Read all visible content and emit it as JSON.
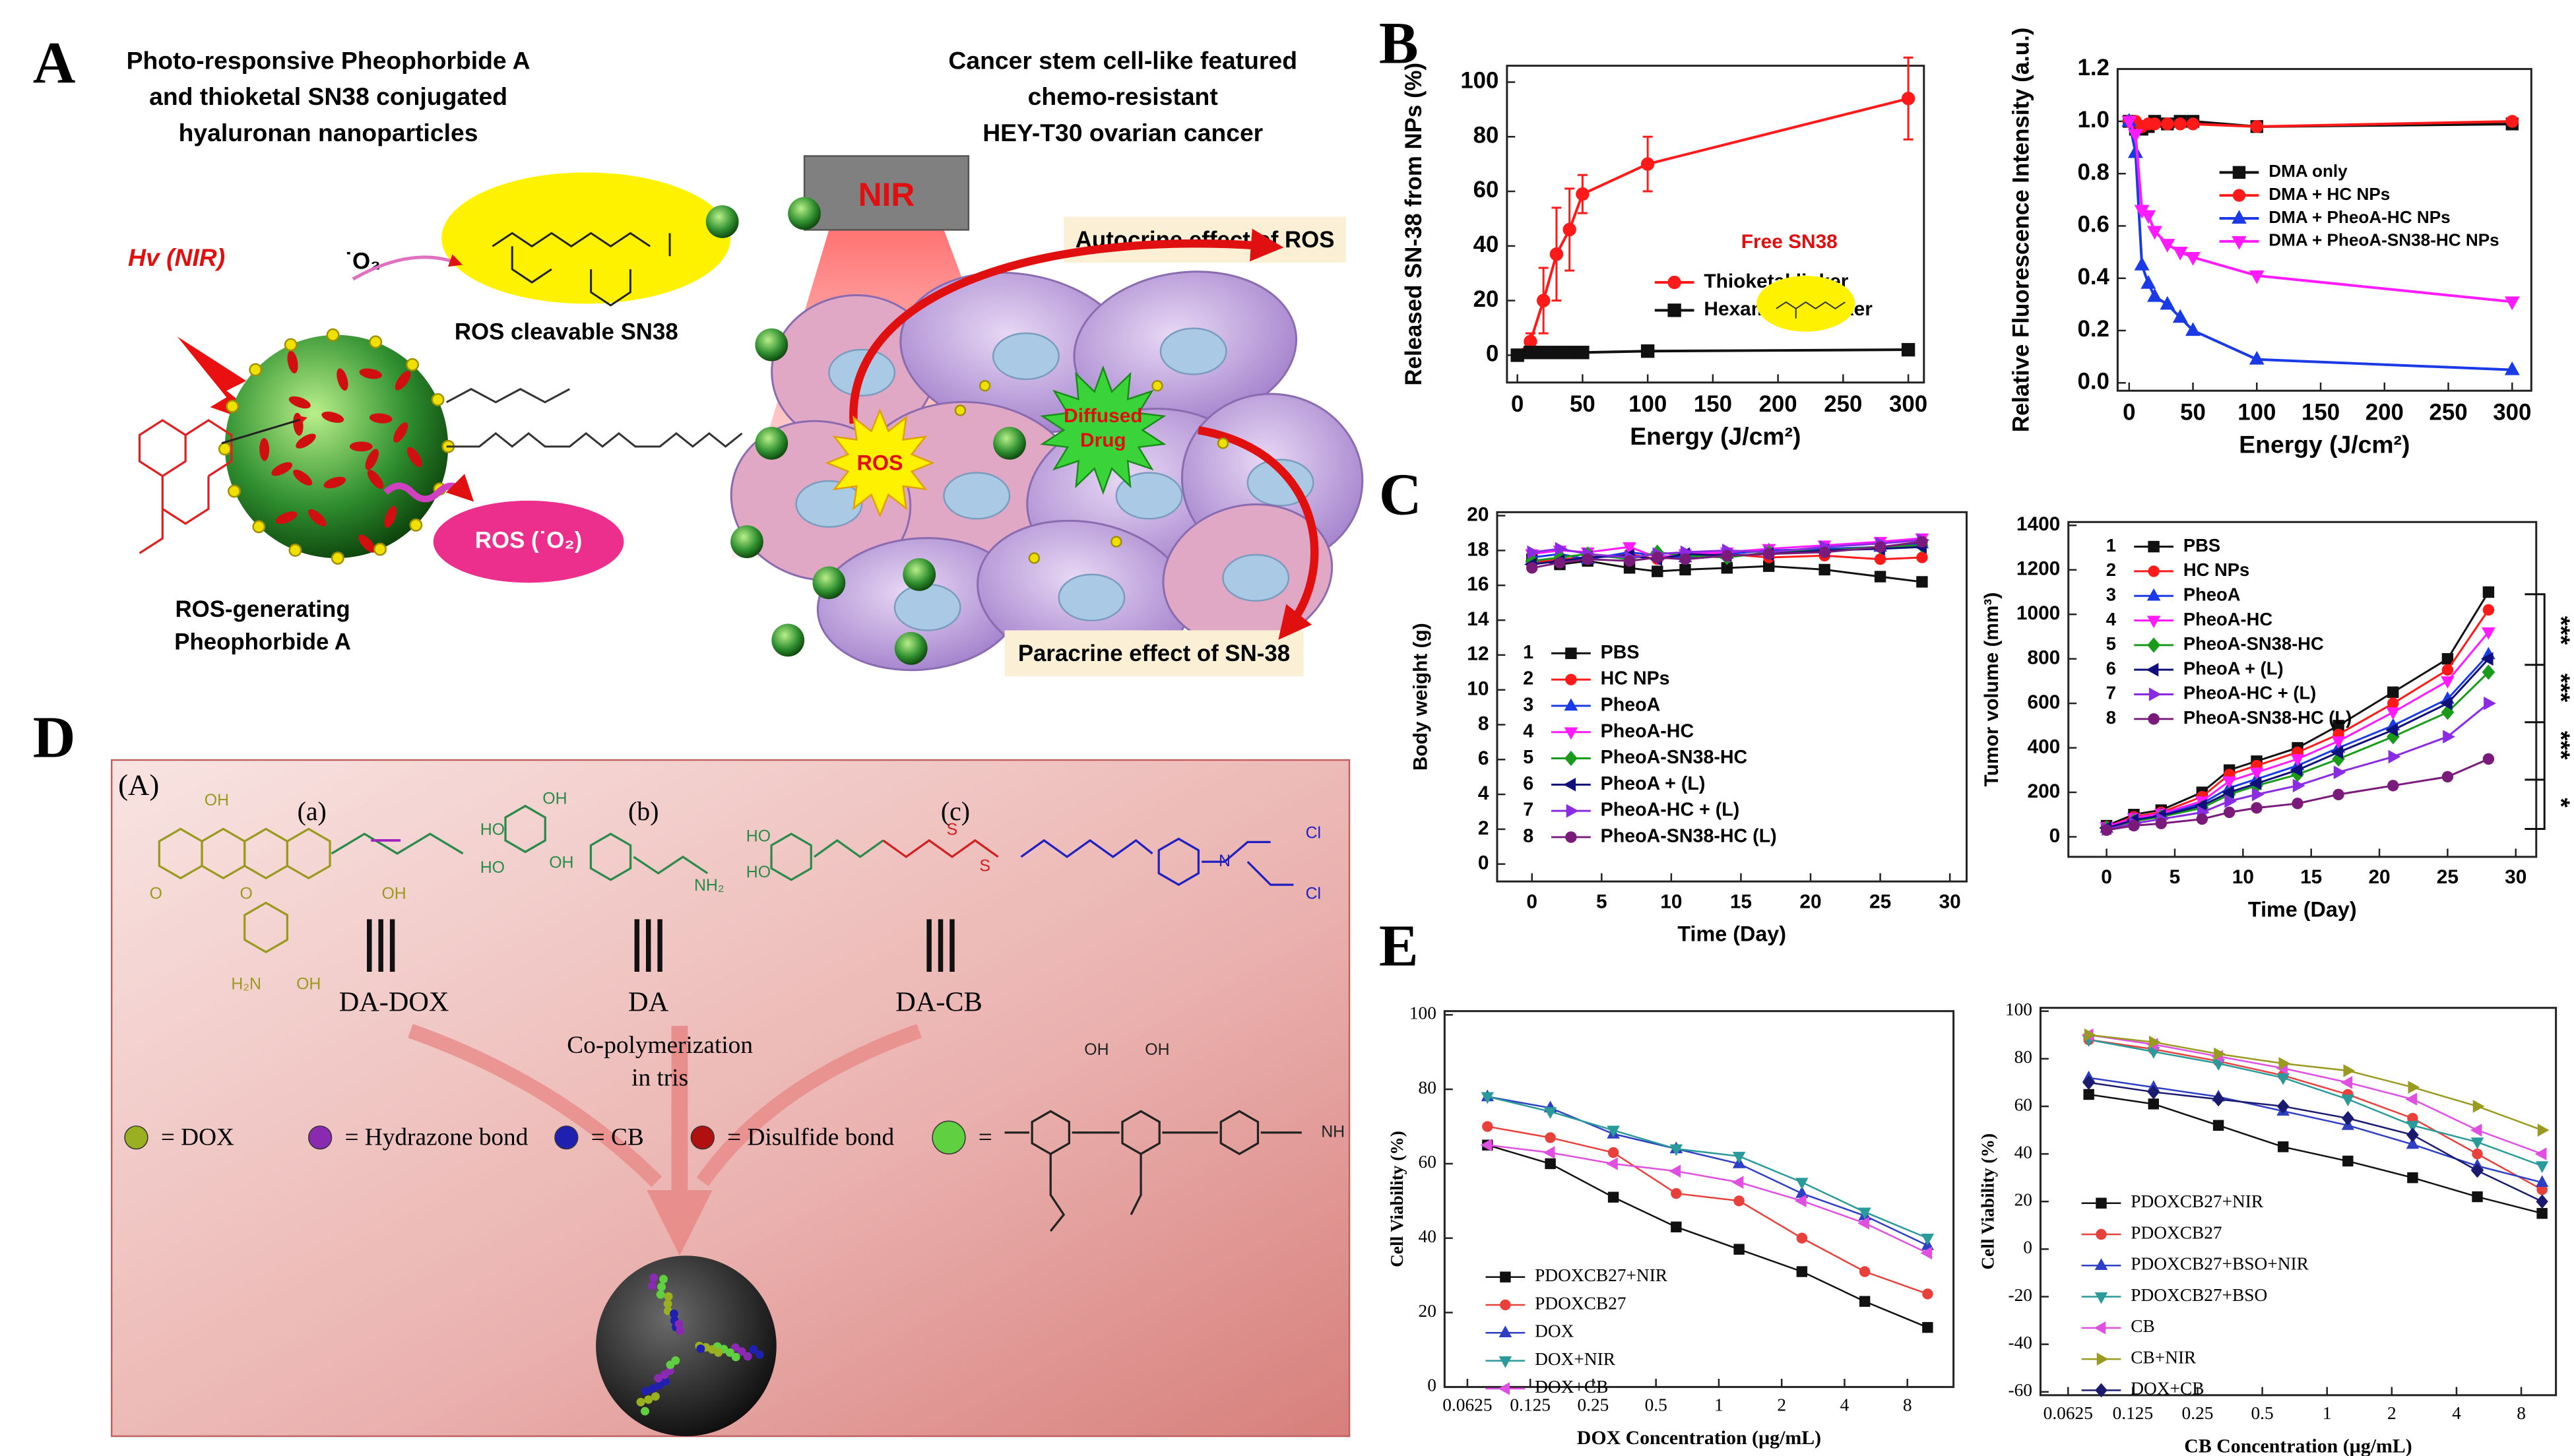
{
  "panel_labels": [
    "A",
    "B",
    "C",
    "D",
    "E"
  ],
  "panel_a": {
    "heading": [
      "Photo-responsive Pheophorbide A",
      "and thioketal SN38 conjugated",
      "hyaluronan nanoparticles"
    ],
    "hv": "Hv (NIR)",
    "superoxide": "˙O₂",
    "ros_cleavable": "ROS cleavable SN38",
    "ros_generating": [
      "ROS-generating",
      "Pheophorbide A"
    ],
    "ros_o2": "ROS (˙O₂)",
    "cancer_heading": [
      "Cancer stem cell-like featured",
      "chemo-resistant",
      "HEY-T30 ovarian cancer"
    ],
    "nir": "NIR",
    "autocrine": "Autocrine effect of ROS",
    "ros_burst": "ROS",
    "diffused": [
      "Diffused",
      "Drug"
    ],
    "paracrine": "Paracrine effect of SN-38"
  },
  "panel_d": {
    "sub_label": "(A)",
    "compounds": [
      {
        "tag": "(a)",
        "name": "DA-DOX"
      },
      {
        "tag": "(b)",
        "name": "DA"
      },
      {
        "tag": "(c)",
        "name": "DA-CB"
      }
    ],
    "process": [
      "Co-polymerization",
      "in tris"
    ],
    "legend": [
      "= DOX",
      "= Hydrazone bond",
      "= CB",
      "= Disulfide bond",
      "="
    ],
    "chem_labels": [
      "OH",
      "OH",
      "O",
      "O",
      "OH",
      "OH",
      "HO",
      "HO",
      "NH₂",
      "HO",
      "HO",
      "S",
      "S",
      "N",
      "Cl",
      "Cl",
      "H₂N",
      "OH",
      "OH",
      "OH",
      "NH"
    ]
  },
  "chart_data": [
    {
      "type": "line",
      "xlabel": "Energy (J/cm²)",
      "ylabel": "Released SN-38 from NPs (%)",
      "annotation": "Free SN38",
      "x": [
        0,
        10,
        20,
        30,
        40,
        50,
        100,
        300
      ],
      "xlim": [
        -8,
        312
      ],
      "xticks": [
        0,
        50,
        100,
        150,
        200,
        250,
        300
      ],
      "ylim": [
        -10,
        106
      ],
      "yticks": [
        0,
        20,
        40,
        60,
        80,
        100
      ],
      "series": [
        {
          "name": "Thioketal linker",
          "color": "#ff1a1a",
          "marker": "circle",
          "values": [
            0,
            5,
            20,
            37,
            46,
            59,
            70,
            94
          ],
          "errors": [
            1,
            3,
            12,
            17,
            15,
            7,
            10,
            15
          ]
        },
        {
          "name": "Hexamethyl linker",
          "color": "#111111",
          "marker": "square",
          "values": [
            0,
            1,
            1,
            1,
            1,
            1,
            1.5,
            2
          ]
        }
      ]
    },
    {
      "type": "line",
      "xlabel": "Energy (J/cm²)",
      "ylabel": "Relative Fluorescence Intensity (a.u.)",
      "x": [
        0,
        5,
        10,
        15,
        20,
        30,
        40,
        50,
        100,
        300
      ],
      "xlim": [
        -9,
        315
      ],
      "xticks": [
        0,
        50,
        100,
        150,
        200,
        250,
        300
      ],
      "ylim": [
        -0.03,
        1.2
      ],
      "yticks": [
        {
          "value": 0,
          "label": "0.0"
        },
        0.2,
        0.4,
        0.6,
        0.8,
        {
          "value": 1,
          "label": "1.0"
        },
        1.2
      ],
      "series": [
        {
          "name": "DMA only",
          "color": "#111111",
          "marker": "square",
          "values": [
            1,
            0.97,
            0.97,
            0.98,
            1.0,
            0.99,
            1.0,
            1.0,
            0.98,
            0.99
          ]
        },
        {
          "name": "DMA + HC NPs",
          "color": "#ff1a1a",
          "marker": "circle",
          "values": [
            1,
            1.0,
            0.98,
            0.99,
            0.99,
            0.99,
            0.99,
            0.99,
            0.98,
            1.0
          ]
        },
        {
          "name": "DMA + PheoA-HC NPs",
          "color": "#1a3ae6",
          "marker": "triangle",
          "values": [
            1,
            0.88,
            0.45,
            0.38,
            0.33,
            0.3,
            0.25,
            0.2,
            0.09,
            0.05
          ]
        },
        {
          "name": "DMA + PheoA-SN38-HC NPs",
          "color": "#ff1aff",
          "marker": "triangle-down",
          "values": [
            1,
            0.95,
            0.66,
            0.64,
            0.58,
            0.53,
            0.5,
            0.48,
            0.41,
            0.31
          ]
        }
      ]
    },
    {
      "type": "line",
      "xlabel": "Time (Day)",
      "ylabel": "Body weight (g)",
      "legend_numbers": [
        "1",
        "2",
        "3",
        "4",
        "5",
        "6",
        "7",
        "8"
      ],
      "x": [
        0,
        2,
        4,
        7,
        9,
        11,
        14,
        17,
        21,
        25,
        28
      ],
      "xlim": [
        -2.5,
        31.2
      ],
      "xticks": [
        0,
        5,
        10,
        15,
        20,
        25,
        30
      ],
      "ylim": [
        -1,
        20.2
      ],
      "yticks": [
        0,
        2,
        4,
        6,
        8,
        10,
        12,
        14,
        16,
        18,
        20
      ],
      "series": [
        {
          "name": "PBS",
          "color": "#111111",
          "marker": "square",
          "values": [
            17.5,
            17.2,
            17.4,
            17.0,
            16.8,
            16.9,
            17.0,
            17.1,
            16.9,
            16.5,
            16.2
          ]
        },
        {
          "name": "HC NPs",
          "color": "#ff1a1a",
          "marker": "circle",
          "values": [
            17.3,
            17.5,
            17.6,
            17.8,
            17.5,
            17.7,
            17.8,
            17.6,
            17.7,
            17.5,
            17.6
          ]
        },
        {
          "name": "PheoA",
          "color": "#1a3ae6",
          "marker": "triangle",
          "values": [
            17.6,
            17.8,
            17.5,
            17.9,
            17.7,
            17.6,
            17.8,
            18.0,
            18.1,
            18.2,
            18.4
          ]
        },
        {
          "name": "PheoA-HC",
          "color": "#ff1aff",
          "marker": "triangle-down",
          "values": [
            17.8,
            18.0,
            17.9,
            18.2,
            17.6,
            17.8,
            17.9,
            18.1,
            18.3,
            18.5,
            18.7
          ]
        },
        {
          "name": "PheoA-SN38-HC",
          "color": "#1a9a1a",
          "marker": "diamond",
          "values": [
            17.4,
            17.6,
            17.8,
            17.5,
            17.9,
            17.7,
            17.6,
            17.9,
            18.0,
            18.2,
            18.3
          ]
        },
        {
          "name": "PheoA + (L)",
          "color": "#10107a",
          "marker": "triangle-left",
          "values": [
            17.2,
            17.4,
            17.6,
            17.7,
            17.5,
            17.8,
            17.7,
            17.8,
            18.0,
            18.1,
            18.2
          ]
        },
        {
          "name": "PheoA-HC + (L)",
          "color": "#8a2be2",
          "marker": "triangle-right",
          "values": [
            17.9,
            18.1,
            17.8,
            17.6,
            17.8,
            17.9,
            18.0,
            17.9,
            18.2,
            18.4,
            18.6
          ]
        },
        {
          "name": "PheoA-SN38-HC (L)",
          "color": "#7a1a7a",
          "marker": "circle",
          "values": [
            17.0,
            17.3,
            17.5,
            17.4,
            17.6,
            17.5,
            17.7,
            17.8,
            17.9,
            18.2,
            18.5
          ]
        }
      ]
    },
    {
      "type": "line",
      "xlabel": "Time (Day)",
      "ylabel": "Tumor volume (mm³)",
      "legend_numbers": [
        "1",
        "2",
        "3",
        "4",
        "5",
        "6",
        "7",
        "8"
      ],
      "annotations": [
        "***",
        "***",
        "***",
        "*"
      ],
      "x": [
        0,
        2,
        4,
        7,
        9,
        11,
        14,
        17,
        21,
        25,
        28
      ],
      "xlim": [
        -2.8,
        31.5
      ],
      "xticks": [
        0,
        5,
        10,
        15,
        20,
        25,
        30
      ],
      "ylim": [
        -90,
        1415
      ],
      "yticks": [
        0,
        200,
        400,
        600,
        800,
        1000,
        1200,
        1400
      ],
      "series": [
        {
          "name": "PBS",
          "color": "#111111",
          "marker": "square",
          "values": [
            50,
            100,
            120,
            200,
            300,
            340,
            400,
            500,
            650,
            800,
            1100
          ]
        },
        {
          "name": "HC NPs",
          "color": "#ff1a1a",
          "marker": "circle",
          "values": [
            45,
            90,
            110,
            180,
            280,
            320,
            380,
            460,
            600,
            750,
            1020
          ]
        },
        {
          "name": "PheoA",
          "color": "#1a3ae6",
          "marker": "triangle",
          "values": [
            40,
            80,
            100,
            150,
            220,
            260,
            320,
            400,
            500,
            620,
            820
          ]
        },
        {
          "name": "PheoA-HC",
          "color": "#ff1aff",
          "marker": "triangle-down",
          "values": [
            45,
            85,
            105,
            160,
            250,
            290,
            350,
            430,
            560,
            700,
            920
          ]
        },
        {
          "name": "PheoA-SN38-HC",
          "color": "#1a9a1a",
          "marker": "diamond",
          "values": [
            40,
            70,
            90,
            130,
            190,
            230,
            280,
            350,
            450,
            560,
            740
          ]
        },
        {
          "name": "PheoA + (L)",
          "color": "#10107a",
          "marker": "triangle-left",
          "values": [
            40,
            75,
            95,
            140,
            200,
            240,
            300,
            380,
            480,
            600,
            800
          ]
        },
        {
          "name": "PheoA-HC + (L)",
          "color": "#8a2be2",
          "marker": "triangle-right",
          "values": [
            35,
            60,
            80,
            110,
            160,
            190,
            230,
            290,
            360,
            450,
            600
          ]
        },
        {
          "name": "PheoA-SN38-HC (L)",
          "color": "#7a1a7a",
          "marker": "circle",
          "values": [
            30,
            50,
            60,
            80,
            110,
            130,
            150,
            190,
            230,
            270,
            350
          ]
        }
      ]
    },
    {
      "type": "line",
      "xlabel": "DOX Concentration (µg/mL)",
      "ylabel": "Cell Viability (%)",
      "xscale": "log",
      "x": [
        0.078,
        0.156,
        0.3125,
        0.625,
        1.25,
        2.5,
        5,
        10
      ],
      "xlim": [
        0.0486,
        13.3
      ],
      "xticks": [
        0.0625,
        0.125,
        0.25,
        0.5,
        1,
        2,
        4,
        8
      ],
      "ylim": [
        0,
        101
      ],
      "yticks": [
        0,
        20,
        40,
        60,
        80,
        100
      ],
      "series": [
        {
          "name": "PDOXCB27+NIR",
          "color": "#111111",
          "marker": "square",
          "values": [
            65,
            60,
            51,
            43,
            37,
            31,
            23,
            16
          ]
        },
        {
          "name": "PDOXCB27",
          "color": "#e8413c",
          "marker": "circle",
          "values": [
            70,
            67,
            63,
            52,
            50,
            40,
            31,
            25
          ]
        },
        {
          "name": "DOX",
          "color": "#2e3fc4",
          "marker": "triangle",
          "values": [
            78,
            75,
            68,
            64,
            60,
            52,
            46,
            38
          ]
        },
        {
          "name": "DOX+NIR",
          "color": "#2a9a9a",
          "marker": "triangle-down",
          "values": [
            78,
            74,
            69,
            64,
            62,
            55,
            47,
            40
          ]
        },
        {
          "name": "DOX+CB",
          "color": "#e050e0",
          "marker": "triangle-left",
          "values": [
            65,
            63,
            60,
            58,
            55,
            50,
            44,
            36
          ]
        }
      ]
    },
    {
      "type": "line",
      "xlabel": "CB Concentration (µg/mL)",
      "ylabel": "Cell Viability (%)",
      "xscale": "log",
      "x": [
        0.078,
        0.156,
        0.3125,
        0.625,
        1.25,
        2.5,
        5,
        10
      ],
      "xlim": [
        0.0465,
        11.6
      ],
      "xticks": [
        0.0625,
        0.125,
        0.25,
        0.5,
        1,
        2,
        4,
        8
      ],
      "ylim": [
        -61.4,
        101.4
      ],
      "yticks": [
        -60,
        -40,
        -20,
        0,
        20,
        40,
        60,
        80,
        100
      ],
      "series": [
        {
          "name": "PDOXCB27+NIR",
          "color": "#111111",
          "marker": "square",
          "values": [
            65,
            61,
            52,
            43,
            37,
            30,
            22,
            15
          ]
        },
        {
          "name": "PDOXCB27",
          "color": "#e8413c",
          "marker": "circle",
          "values": [
            88,
            84,
            79,
            73,
            65,
            55,
            40,
            25
          ]
        },
        {
          "name": "PDOXCB27+BSO+NIR",
          "color": "#2e3fc4",
          "marker": "triangle",
          "values": [
            72,
            68,
            64,
            58,
            52,
            44,
            35,
            28
          ]
        },
        {
          "name": "PDOXCB27+BSO",
          "color": "#2a9a9a",
          "marker": "triangle-down",
          "values": [
            88,
            83,
            78,
            72,
            63,
            52,
            45,
            35
          ]
        },
        {
          "name": "CB",
          "color": "#e050e0",
          "marker": "triangle-left",
          "values": [
            90,
            86,
            81,
            76,
            70,
            63,
            50,
            40
          ]
        },
        {
          "name": "CB+NIR",
          "color": "#9a9a20",
          "marker": "triangle-right",
          "values": [
            90,
            87,
            82,
            78,
            75,
            68,
            60,
            50
          ]
        },
        {
          "name": "DOX+CB",
          "color": "#1a1a6e",
          "marker": "diamond",
          "values": [
            70,
            66,
            63,
            60,
            55,
            48,
            33,
            20
          ]
        }
      ]
    }
  ]
}
